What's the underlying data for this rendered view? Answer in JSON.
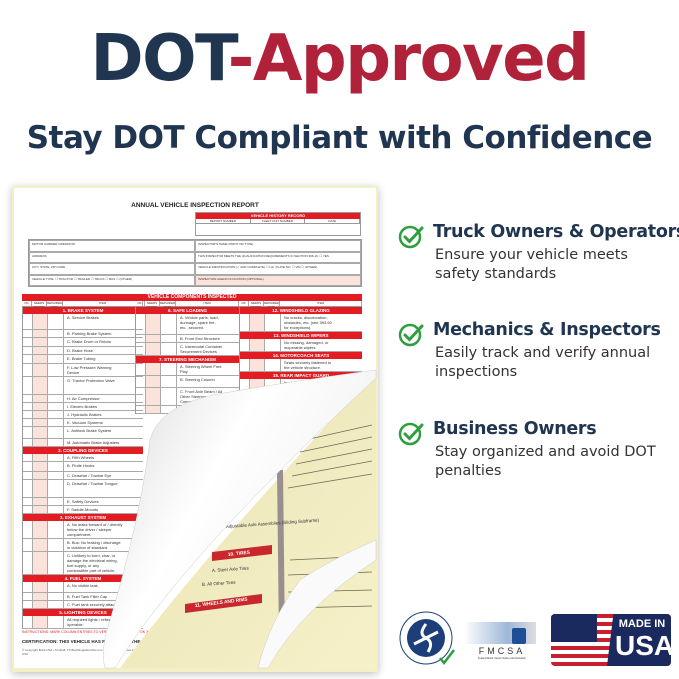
{
  "headline": {
    "part1": "DOT",
    "part2": "-Approved",
    "color1": "#1f3550",
    "color2": "#b0223a"
  },
  "subtitle": "Stay DOT Compliant with Confidence",
  "form": {
    "title": "ANNUAL VEHICLE INSPECTION REPORT",
    "history": {
      "header": "VEHICLE HISTORY RECORD",
      "cols": [
        "REPORT NUMBER",
        "FLEET UNIT NUMBER",
        "DATE"
      ]
    },
    "info": [
      "MOTOR CARRIER OPERATOR",
      "INSPECTOR'S NAME (PRINT OR TYPE)",
      "ADDRESS",
      "THIS INSPECTOR MEETS THE QUALIFICATION REQUIREMENTS IN SECTION 396.19.  ☐ YES",
      "CITY, STATE, ZIP CODE",
      "VEHICLE IDENTIFICATION (✓ AND COMPLETE)  ☐ LIC. PLATE NO.  ☐ VIN  ☐ (OTHER)",
      "VEHICLE TYPE:  ☐ TRACTOR  ☐ TRAILER  ☐ TRUCK  ☐ BUS  ☐ (OTHER)",
      "INSPECTION AGENCY/LOCATION (OPTIONAL)"
    ],
    "components_header": "VEHICLE COMPONENTS INSPECTED",
    "col_headers": [
      "OK",
      "NEEDS REPAIR",
      "REPAIRED DATE",
      "ITEM"
    ],
    "columns": [
      [
        {
          "section": "1. BRAKE SYSTEM"
        },
        {
          "item": "A.  Service Brakes",
          "h": 16
        },
        {
          "item": "B.  Parking Brake System"
        },
        {
          "item": "C.  Brake Drum or Rotors",
          "h": 9
        },
        {
          "item": "D.  Brake Hose"
        },
        {
          "item": "E.  Brake Tubing",
          "h": 9
        },
        {
          "item": "F.  Low Pressure Warning\n     Device",
          "h": 11
        },
        {
          "item": "G.  Tractor Protection Valve",
          "h": 18
        },
        {
          "item": "H.  Air Compressor"
        },
        {
          "item": "I.   Electric Brakes"
        },
        {
          "item": "J.   Hydraulic Brakes"
        },
        {
          "item": "K.  Vacuum Systems"
        },
        {
          "item": "L.  Antilock Brake System",
          "h": 12
        },
        {
          "item": "M.  Automatic Brake Adjusters"
        },
        {
          "section": "2. COUPLING DEVICES"
        },
        {
          "item": "A.  Fifth Wheels"
        },
        {
          "item": "B.  Pintle Hooks",
          "h": 10
        },
        {
          "item": "C.  Drawbar / Towbar Eye"
        },
        {
          "item": "D.  Drawbar / Towbar Tongue",
          "h": 18
        },
        {
          "item": "E.  Safety Devices"
        },
        {
          "item": "F.  Saddle-Mounts"
        },
        {
          "section": "3. EXHAUST SYSTEM"
        },
        {
          "item": "A.  No leaks forward of / directly\n     below the driver / sleeper\n     compartment.",
          "h": 16
        },
        {
          "item": "B.  Bus: No leaking / discharge\n     in violation of standard.",
          "h": 11
        },
        {
          "item": "C.  Unlikely to burn, char, or\n     damage the electrical wiring,\n     fuel supply, or any\n     combustible part of vehicle.",
          "h": 22
        },
        {
          "section": "4. FUEL SYSTEM"
        },
        {
          "item": "A.  No visible leak.",
          "h": 11
        },
        {
          "item": "B.  Fuel Tank Filler Cap"
        },
        {
          "item": "C.  Fuel tank securely attached."
        },
        {
          "section": "5. LIGHTING DEVICES"
        },
        {
          "item": "     All required lights / reflectors\n     operable.",
          "h": 11
        }
      ],
      [
        {
          "section": "6. SAFE LOADING"
        },
        {
          "item": "A.  Vehicle parts, load,\n     dunnage, spare tire,\n     etc., secured.",
          "h": 21
        },
        {
          "item": "B.  Front End Structure"
        },
        {
          "item": "C.  Intermodal Container\n     Securement Devices",
          "h": 11
        },
        {
          "section": "7. STEERING MECHANISM"
        },
        {
          "item": "A.  Steering Wheel Free\n     Play",
          "h": 12
        },
        {
          "item": "B.  Steering Column",
          "h": 12
        },
        {
          "item": "C.  Front Axle Beam / All\n     Other Steering\n     Components",
          "h": 15
        },
        {
          "item": "D.  Steering Gear Box"
        }
      ],
      [
        {
          "section": "12. WINDSHIELD GLAZING"
        },
        {
          "item": "No cracks, discoloration,\nobstacles, etc. (see 393.60\nfor exceptions).",
          "h": 16
        },
        {
          "section": "13. WINDSHIELD WIPERS"
        },
        {
          "item": "No missing, damaged, or\ninoperable wipers.",
          "h": 11
        },
        {
          "section": "14. MOTORCOACH SEATS"
        },
        {
          "item": "Seats securely fastened to\nthe vehicle structure.",
          "h": 11
        },
        {
          "section": "15. REAR IMPACT GUARD"
        },
        {
          "item": "In place, securely attached,\nproper size, proper placement\n(see 393.86).",
          "h": 16
        },
        {
          "section": "16. OTHER"
        },
        {
          "item": "List any other condition(s)\nwhich may prevent safe\noperation of this vehicle.",
          "h": 20
        }
      ]
    ],
    "instructions": "INSTRUCTIONS: MARK COLUMN ENTRIES TO VERIFY INSPECTION:  ✓ OK   X NEEDS REPAIR   NA IF ITEMS DO NOT APPLY   REPAIRED DATE",
    "certification": "CERTIFICATION: THIS VEHICLE HAS PASSED ALL THE INSPECTION ITEMS FOR THE ANNUAL VEHICLE INSPECTION IN ACCORDANCE WITH 49 CFR PART 396.",
    "copyright": "© Copyright Buck USA • Tomball, TX  BuckSuppliesUSA.com • Printed & Designed in the USA",
    "copy_label": "VEHICLE COPY",
    "yellow_fragments": [
      "10. TIRES",
      "A. Steer Axle Tires",
      "B. All Other Tires",
      "11. WHEELS AND RIMS",
      "Adjustable Axle Assemblies (Sliding Subframe)"
    ]
  },
  "features": [
    {
      "title": "Truck Owners & Operators",
      "desc": "Ensure your vehicle meets safety standards"
    },
    {
      "title": "Mechanics & Inspectors",
      "desc": "Easily track and verify annual inspections"
    },
    {
      "title": "Business Owners",
      "desc": "Stay organized and avoid DOT penalties"
    }
  ],
  "check_color": "#2e9e3e",
  "logos": {
    "dot": "DEPARTMENT OF TRANSPORTATION · UNITED STATES OF AMERICA",
    "fmcsa": "FMCSA",
    "fmcsa_sub": "Federal Motor Carrier Safety Administration",
    "usa_line1": "MADE IN",
    "usa_line2": "USA"
  }
}
